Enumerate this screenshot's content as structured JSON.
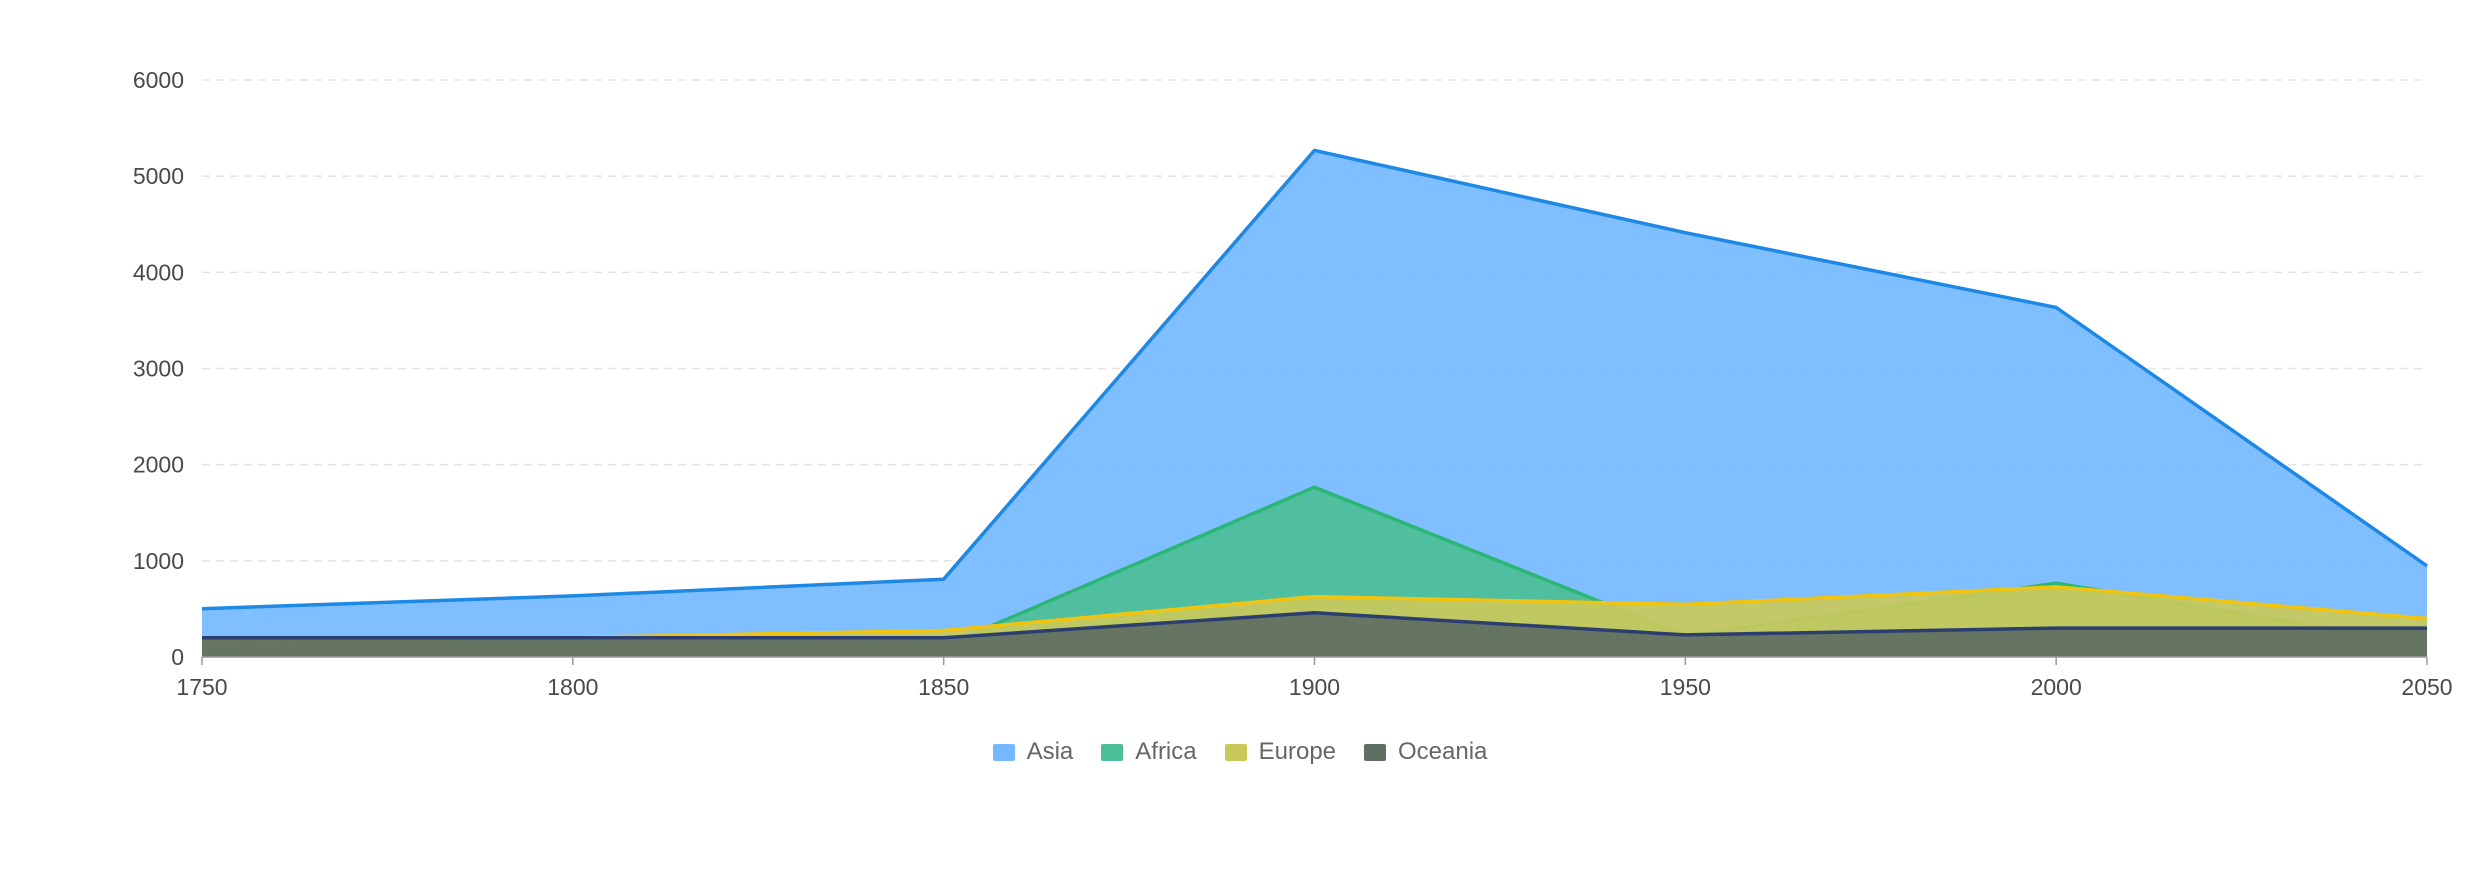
{
  "chart_data": {
    "type": "area",
    "x": [
      1750,
      1800,
      1850,
      1900,
      1950,
      2000,
      2050
    ],
    "xlim": [
      1750,
      2050
    ],
    "ylim": [
      0,
      6000
    ],
    "x_ticks": [
      1750,
      1800,
      1850,
      1900,
      1950,
      2000,
      2050
    ],
    "y_ticks": [
      0,
      1000,
      2000,
      3000,
      4000,
      5000,
      6000
    ],
    "grid": true,
    "legend_position": "bottom",
    "series": [
      {
        "name": "Asia",
        "values": [
          502,
          635,
          809,
          5268,
          4412,
          3634,
          947
        ],
        "color": "#1e88e5",
        "fill": "#74b9ff"
      },
      {
        "name": "Africa",
        "values": [
          106,
          107,
          111,
          1766,
          221,
          767,
          133
        ],
        "color": "#2bb673",
        "fill": "#4cbf97"
      },
      {
        "name": "Europe",
        "values": [
          163,
          203,
          276,
          628,
          547,
          729,
          400
        ],
        "color": "#f1c40f",
        "fill": "#c9c95b"
      },
      {
        "name": "Oceania",
        "values": [
          200,
          200,
          200,
          460,
          230,
          300,
          300
        ],
        "color": "#2c3e70",
        "fill": "#5e6e62"
      }
    ]
  }
}
